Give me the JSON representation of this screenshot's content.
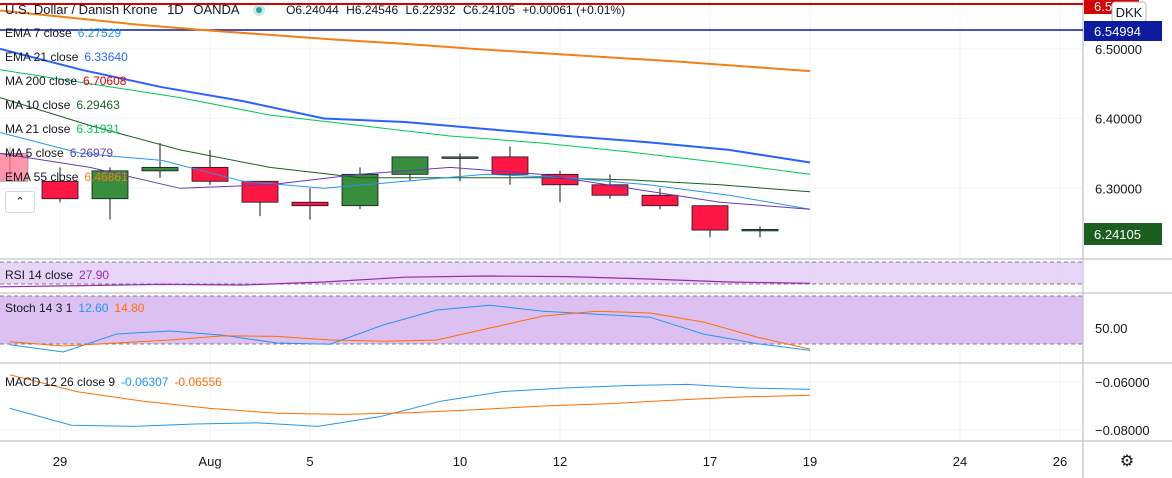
{
  "header": {
    "symbol": "U.S. Dollar / Danish Krone",
    "interval": "1D",
    "exchange": "OANDA",
    "open": "O6.24044",
    "high": "H6.24546",
    "low": "L6.22932",
    "close": "C6.24105",
    "change": "+0.00061 (+0.01%)"
  },
  "currency": "DKK",
  "indicators_main": [
    {
      "label": "EMA 7 close",
      "value": "6.27529",
      "color": "#2196f3"
    },
    {
      "label": "EMA 21 close",
      "value": "6.33640",
      "color": "#2962ff"
    },
    {
      "label": "MA 200 close",
      "value": "6.70608",
      "color": "#d50000"
    },
    {
      "label": "MA 10 close",
      "value": "6.29463",
      "color": "#1b5e20"
    },
    {
      "label": "MA 21 close",
      "value": "6.31931",
      "color": "#00c853"
    },
    {
      "label": "MA 5 close",
      "value": "6.26979",
      "color": "#673ab7"
    },
    {
      "label": "EMA 55 close",
      "value": "6.46861",
      "color": "#f57f17"
    }
  ],
  "price_labels": {
    "top": "6.5…",
    "line": "6.54994",
    "last": "6.24105"
  },
  "rsi": {
    "label": "RSI 14 close",
    "value": "27.90",
    "color": "#9c27b0"
  },
  "stoch": {
    "label": "Stoch 14 3 1",
    "k": "12.60",
    "d": "14.80",
    "k_color": "#2196f3",
    "d_color": "#ff6d00"
  },
  "macd": {
    "label": "MACD 12 26 close 9",
    "macd": "-0.06307",
    "signal": "-0.06556",
    "macd_color": "#2196f3",
    "signal_color": "#ff6d00"
  },
  "chart_data": {
    "type": "candlestick",
    "x_ticks": [
      "29",
      "Aug",
      "5",
      "10",
      "12",
      "17",
      "19",
      "24",
      "26"
    ],
    "price_axis_ticks": [
      "6.50000",
      "6.40000",
      "6.30000"
    ],
    "stoch_axis_ticks": [
      "50.00"
    ],
    "macd_axis_ticks": [
      "−0.06000",
      "−0.08000"
    ],
    "ylim": [
      6.2,
      6.57
    ],
    "candles": [
      {
        "o": 6.35,
        "h": 6.36,
        "l": 6.31,
        "c": 6.31
      },
      {
        "o": 6.31,
        "h": 6.33,
        "l": 6.28,
        "c": 6.285
      },
      {
        "o": 6.285,
        "h": 6.33,
        "l": 6.255,
        "c": 6.325
      },
      {
        "o": 6.325,
        "h": 6.365,
        "l": 6.315,
        "c": 6.33
      },
      {
        "o": 6.33,
        "h": 6.355,
        "l": 6.305,
        "c": 6.31
      },
      {
        "o": 6.31,
        "h": 6.31,
        "l": 6.26,
        "c": 6.28
      },
      {
        "o": 6.28,
        "h": 6.3,
        "l": 6.255,
        "c": 6.275
      },
      {
        "o": 6.275,
        "h": 6.33,
        "l": 6.27,
        "c": 6.32
      },
      {
        "o": 6.32,
        "h": 6.345,
        "l": 6.31,
        "c": 6.345
      },
      {
        "o": 6.345,
        "h": 6.35,
        "l": 6.31,
        "c": 6.345
      },
      {
        "o": 6.345,
        "h": 6.36,
        "l": 6.305,
        "c": 6.32
      },
      {
        "o": 6.32,
        "h": 6.325,
        "l": 6.28,
        "c": 6.305
      },
      {
        "o": 6.305,
        "h": 6.32,
        "l": 6.285,
        "c": 6.29
      },
      {
        "o": 6.29,
        "h": 6.3,
        "l": 6.27,
        "c": 6.275
      },
      {
        "o": 6.275,
        "h": 6.275,
        "l": 6.23,
        "c": 6.24
      },
      {
        "o": 6.24044,
        "h": 6.24546,
        "l": 6.22932,
        "c": 6.24105
      }
    ],
    "series": [
      {
        "color": "#f57f17",
        "values": [
          6.555,
          6.545,
          6.535,
          6.527,
          6.52,
          6.513,
          6.507,
          6.5,
          6.494,
          6.488,
          6.482,
          6.475,
          6.468
        ]
      },
      {
        "color": "#2962ff",
        "values": [
          6.5,
          6.47,
          6.445,
          6.425,
          6.4,
          6.395,
          6.385,
          6.375,
          6.366,
          6.355,
          6.337
        ]
      },
      {
        "color": "#00c853",
        "values": [
          6.47,
          6.45,
          6.43,
          6.405,
          6.39,
          6.375,
          6.365,
          6.352,
          6.337,
          6.32
        ]
      },
      {
        "color": "#1b5e20",
        "values": [
          6.43,
          6.39,
          6.355,
          6.33,
          6.315,
          6.315,
          6.315,
          6.312,
          6.305,
          6.295
        ]
      },
      {
        "color": "#2196f3",
        "values": [
          6.38,
          6.35,
          6.34,
          6.31,
          6.3,
          6.31,
          6.32,
          6.315,
          6.305,
          6.29,
          6.27
        ]
      },
      {
        "color": "#673ab7",
        "values": [
          6.35,
          6.33,
          6.3,
          6.305,
          6.32,
          6.33,
          6.32,
          6.3,
          6.28,
          6.27
        ]
      }
    ],
    "rsi_values": [
      22,
      24,
      26,
      25,
      30,
      38,
      40,
      39,
      35,
      30,
      27.9
    ],
    "stoch_k": [
      22,
      10,
      40,
      45,
      38,
      25,
      23,
      55,
      80,
      88,
      78,
      73,
      68,
      40,
      24,
      12.6
    ],
    "stoch_d": [
      27,
      20,
      25,
      30,
      37,
      36,
      30,
      28,
      30,
      50,
      70,
      78,
      75,
      60,
      35,
      14.8
    ],
    "macd_line": [
      -0.071,
      -0.078,
      -0.0785,
      -0.0775,
      -0.077,
      -0.0785,
      -0.0745,
      -0.068,
      -0.064,
      -0.0625,
      -0.0615,
      -0.061,
      -0.0625,
      -0.06307
    ],
    "signal_line": [
      -0.057,
      -0.064,
      -0.068,
      -0.071,
      -0.073,
      -0.0735,
      -0.0728,
      -0.0715,
      -0.07,
      -0.069,
      -0.0675,
      -0.0662,
      -0.06556
    ]
  }
}
